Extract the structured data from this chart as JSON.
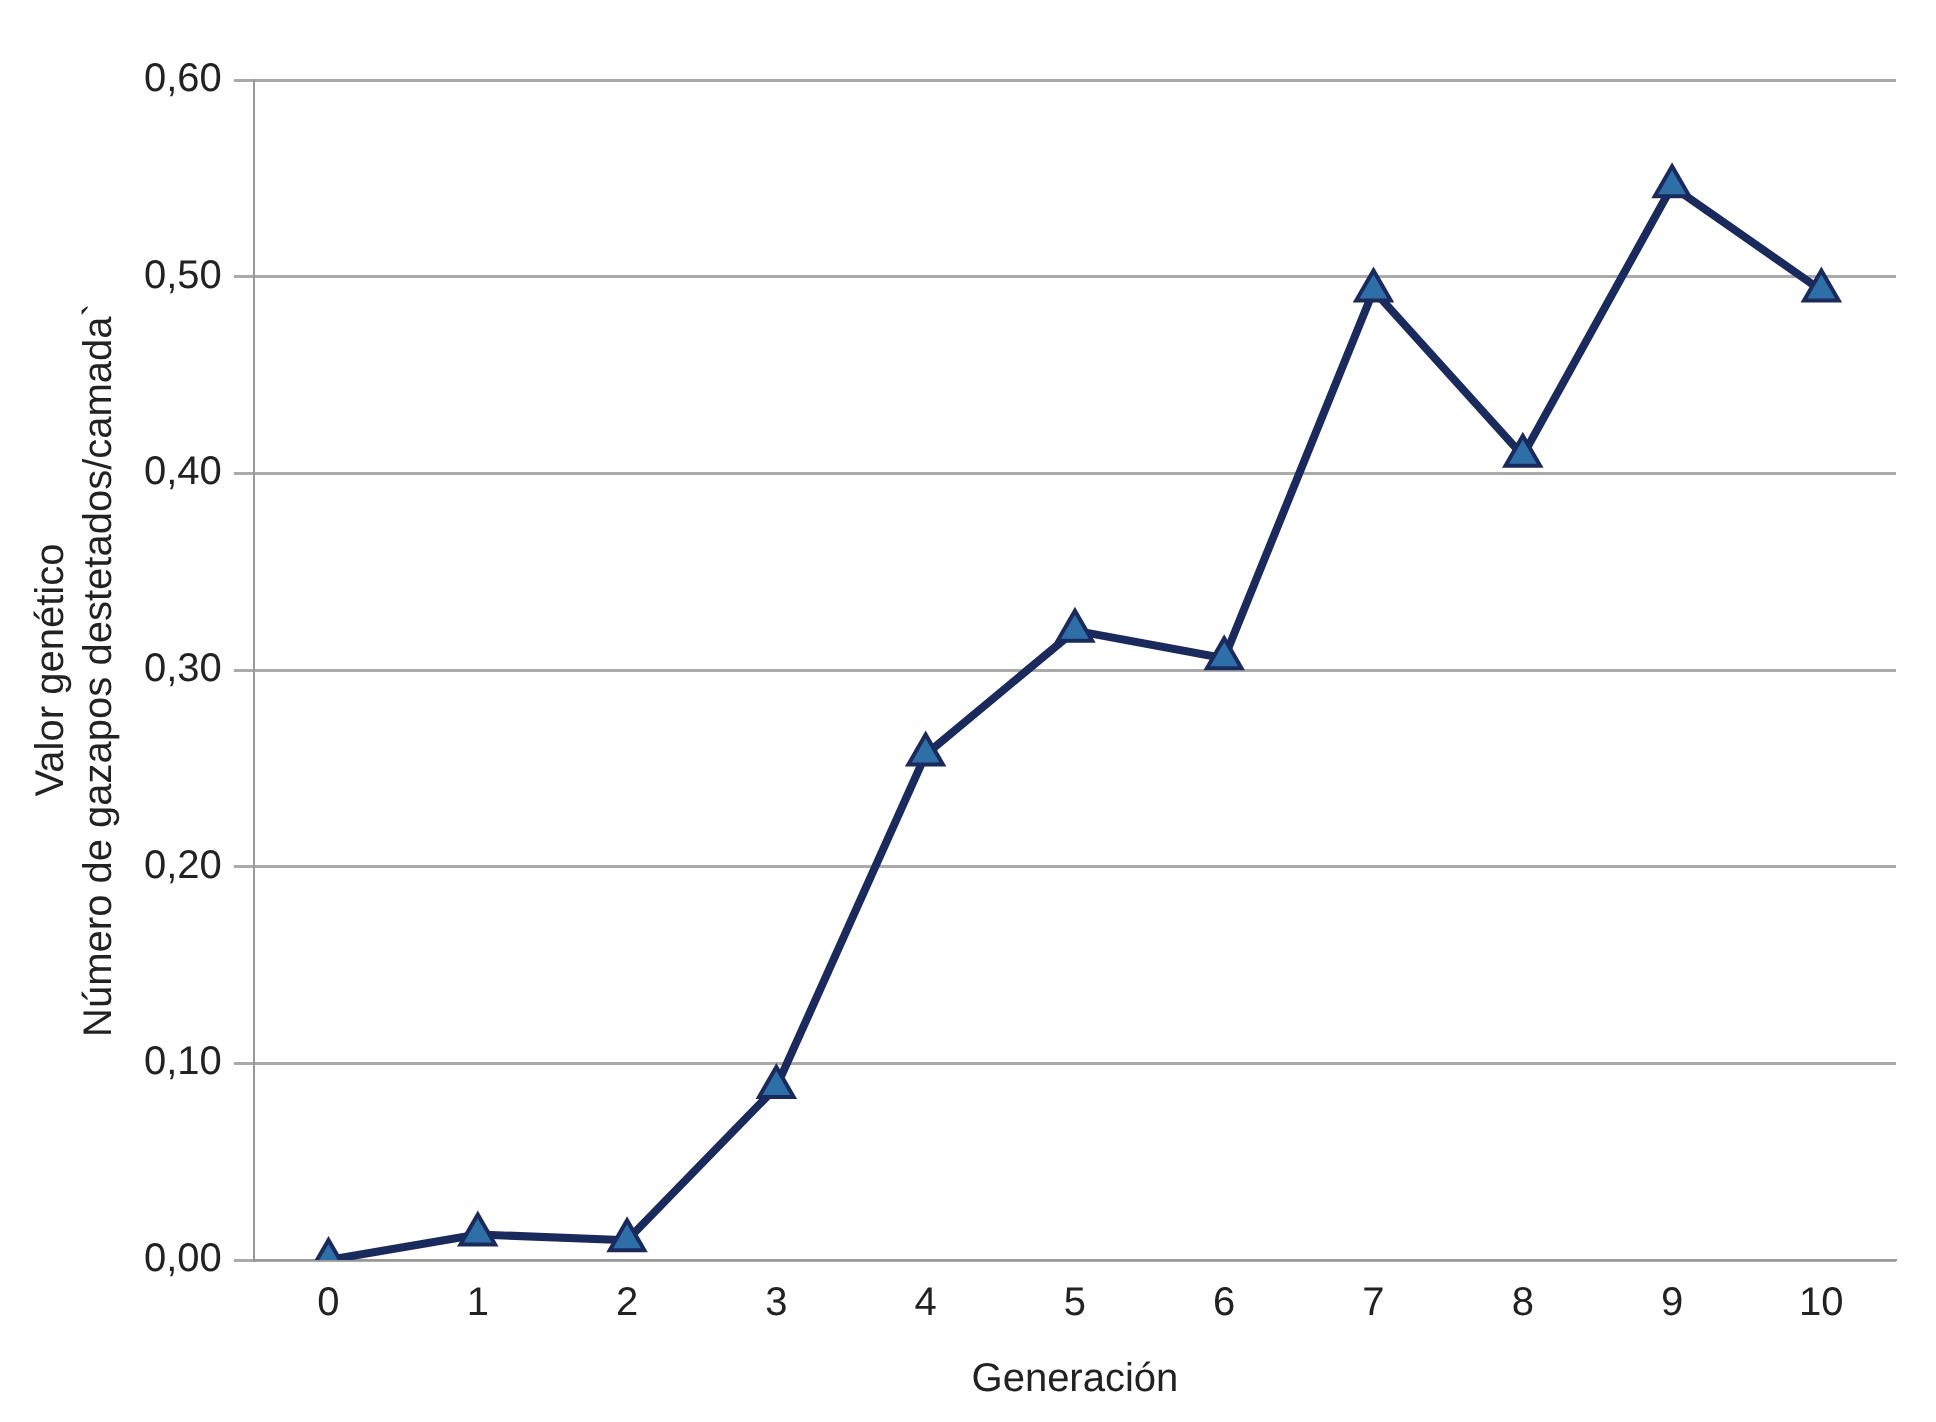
{
  "chart_data": {
    "type": "line",
    "xlabel": "Generación",
    "ylabel": "Valor genético\nNúmero de gazapos destetados/camada`",
    "categories": [
      "0",
      "1",
      "2",
      "3",
      "4",
      "5",
      "6",
      "7",
      "8",
      "9",
      "10"
    ],
    "series": [
      {
        "color": "#1b2a5c",
        "values": [
          0.0,
          0.013,
          0.01,
          0.088,
          0.257,
          0.32,
          0.306,
          0.493,
          0.409,
          0.546,
          0.493
        ]
      }
    ],
    "ylim": [
      0,
      0.6
    ],
    "yticks": [
      {
        "value": 0,
        "label": "0,00"
      },
      {
        "value": 0.1,
        "label": "0,10"
      },
      {
        "value": 0.2,
        "label": "0,20"
      },
      {
        "value": 0.3,
        "label": "0,30"
      },
      {
        "value": 0.4,
        "label": "0,40"
      },
      {
        "value": 0.5,
        "label": "0,50"
      },
      {
        "value": 0.6,
        "label": "0,60"
      }
    ],
    "grid": "y",
    "legend": false,
    "marker": "triangle",
    "line_style": "solid"
  }
}
